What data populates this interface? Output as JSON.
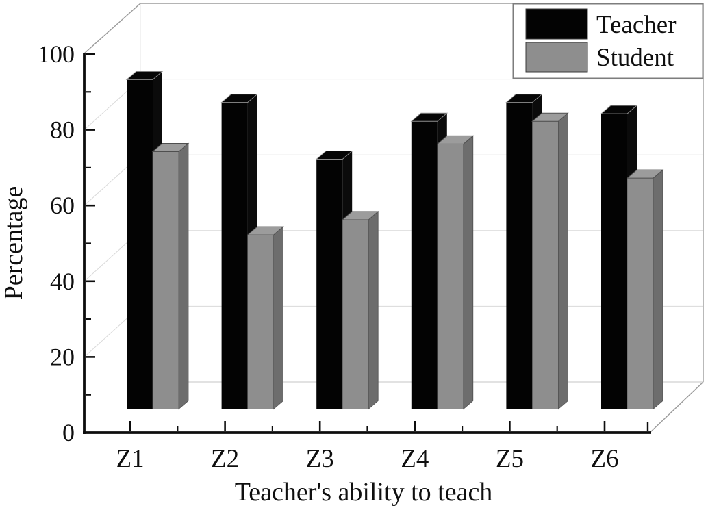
{
  "chart_data": {
    "type": "bar",
    "projection": "3d",
    "title": "",
    "xlabel": "Teacher's ability to teach",
    "ylabel": "Percentage",
    "categories": [
      "Z1",
      "Z2",
      "Z3",
      "Z4",
      "Z5",
      "Z6"
    ],
    "series": [
      {
        "name": "Teacher",
        "color": "#030303",
        "values": [
          87,
          81,
          66,
          76,
          81,
          78
        ]
      },
      {
        "name": "Student",
        "color": "#8e8e8e",
        "values": [
          68,
          46,
          50,
          70,
          76,
          61
        ]
      }
    ],
    "ylim": [
      0,
      100
    ],
    "yticks": [
      0,
      20,
      40,
      60,
      80,
      100
    ],
    "yticklabels": [
      "0",
      "20",
      "40",
      "60",
      "80",
      "100"
    ],
    "grid": true,
    "legend_position": "top-right",
    "colors": {
      "teacher_front": "#030303",
      "teacher_side": "#0b0b0b",
      "teacher_top": "#060606",
      "student_front": "#8e8e8e",
      "student_side": "#6d6d6d",
      "student_top": "#9c9c9c",
      "gridline": "#d9d9d9",
      "frame": "#9b9b9b",
      "axis": "#0d0d0d"
    }
  }
}
